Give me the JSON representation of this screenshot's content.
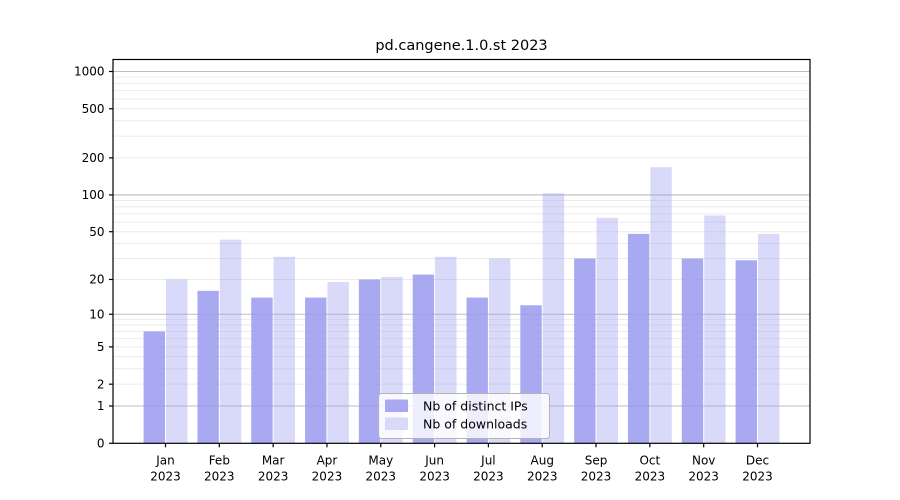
{
  "title": "pd.cangene.1.0.st 2023",
  "chart_data": {
    "type": "bar",
    "title": "pd.cangene.1.0.st 2023",
    "xlabel": "",
    "ylabel": "",
    "y_scale": "log1p",
    "grid": "on",
    "legend_position": "lower center",
    "ylim": [
      0,
      1250
    ],
    "y_ticks": [
      0,
      1,
      2,
      5,
      10,
      20,
      50,
      100,
      200,
      500,
      1000
    ],
    "categories": [
      "Jan 2023",
      "Feb 2023",
      "Mar 2023",
      "Apr 2023",
      "May 2023",
      "Jun 2023",
      "Jul 2023",
      "Aug 2023",
      "Sep 2023",
      "Oct 2023",
      "Nov 2023",
      "Dec 2023"
    ],
    "series": [
      {
        "key": "distinct-ips",
        "name": "Nb of distinct IPs",
        "color": "#9999f0",
        "alpha": 0.84,
        "legend_color": "#a9a9f1",
        "values": [
          7,
          16,
          14,
          14,
          20,
          22,
          14,
          12,
          30,
          48,
          30,
          29
        ]
      },
      {
        "key": "downloads",
        "name": "Nb of downloads",
        "color": "#9999f0",
        "alpha": 0.37,
        "legend_color": "#d9d9f8",
        "values": [
          20,
          43,
          31,
          19,
          21,
          31,
          30,
          103,
          65,
          168,
          68,
          48
        ]
      }
    ],
    "colors": {
      "axis": "#000000",
      "major_grid": "#bdbdbd",
      "minor_grid": "#ebebeb",
      "legend_border": "#b4b4b4",
      "background": "#ffffff"
    }
  }
}
